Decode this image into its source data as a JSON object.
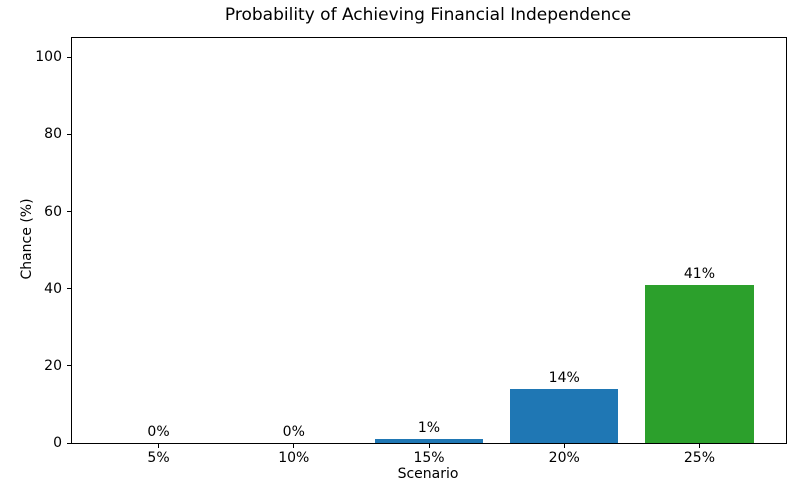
{
  "chart_data": {
    "type": "bar",
    "title": "Probability of Achieving Financial Independence",
    "xlabel": "Scenario",
    "ylabel": "Chance (%)",
    "categories": [
      "5%",
      "10%",
      "15%",
      "20%",
      "25%"
    ],
    "values": [
      0,
      0,
      1,
      14,
      41
    ],
    "bar_labels": [
      "0%",
      "0%",
      "1%",
      "14%",
      "41%"
    ],
    "bar_colors": [
      "#1f77b4",
      "#1f77b4",
      "#1f77b4",
      "#1f77b4",
      "#2ca02c"
    ],
    "yticks": [
      0,
      20,
      40,
      60,
      80,
      100
    ],
    "ylim": [
      0,
      105
    ],
    "bar_width_units": 0.8,
    "grid": false,
    "legend": false,
    "text_color": "#000000",
    "spine_color": "#000000",
    "background_color": "#ffffff"
  }
}
